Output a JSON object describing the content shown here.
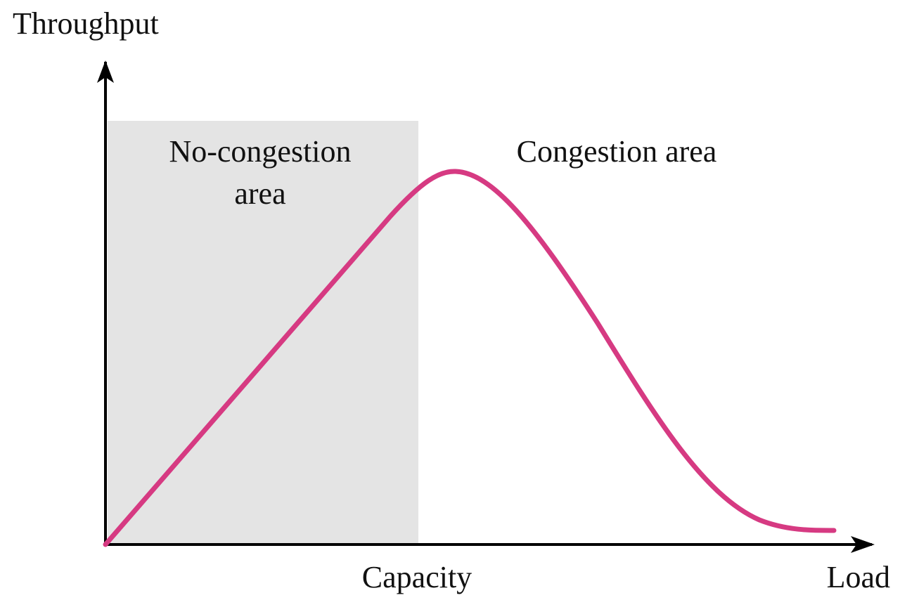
{
  "axes": {
    "y_label": "Throughput",
    "x_label": "Load",
    "x_marker": "Capacity"
  },
  "regions": [
    {
      "label_lines": [
        "No-congestion",
        "area"
      ]
    },
    {
      "label_lines": [
        "Congestion area"
      ]
    }
  ]
}
